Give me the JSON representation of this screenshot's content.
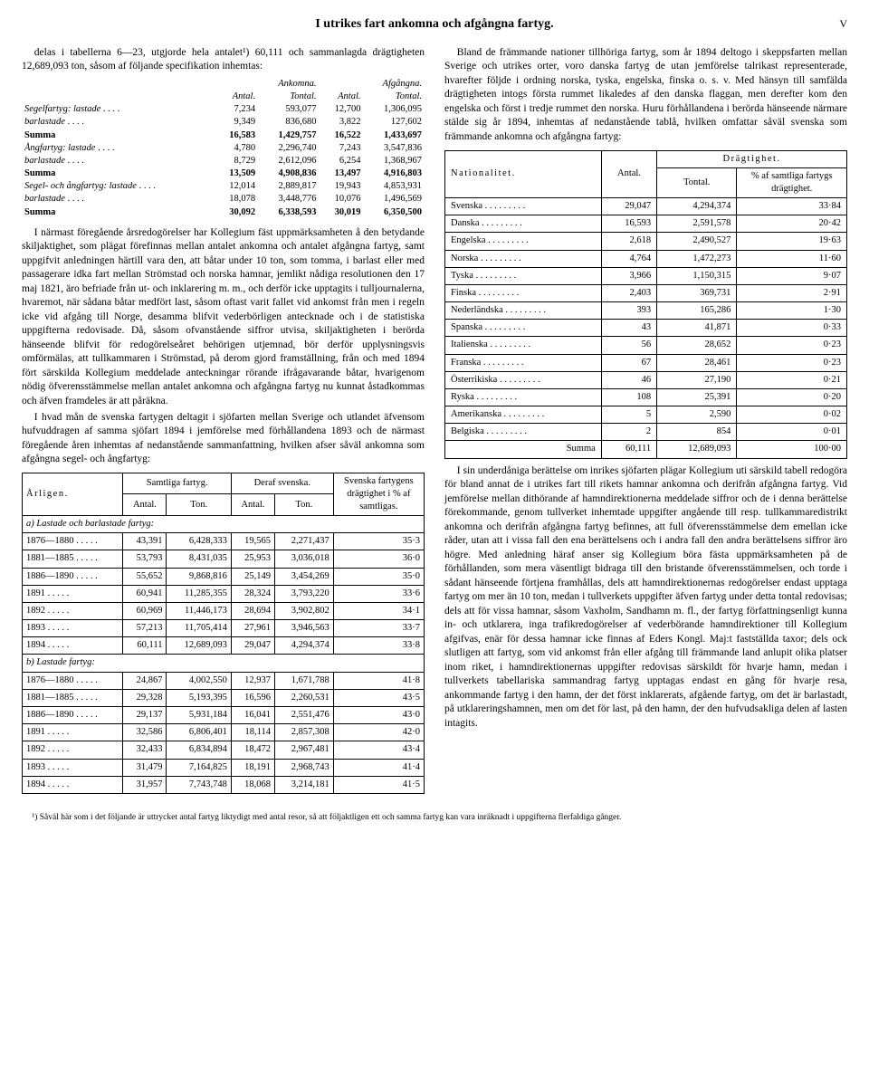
{
  "title": "I utrikes fart ankomna och afgångna fartyg.",
  "page_roman": "V",
  "left_intro": "delas i tabellerna 6—23, utgjorde hela antalet¹) 60,111 och sammanlagda drägtigheten 12,689,093 ton, såsom af följande specifikation inhemtas:",
  "freight": {
    "col_headers": [
      "",
      "Ankomna.",
      "",
      "Afgångna.",
      ""
    ],
    "sub_headers": [
      "",
      "Antal.",
      "Tontal.",
      "Antal.",
      "Tontal."
    ],
    "rows": [
      {
        "lbl": "Segelfartyg: lastade",
        "a": "7,234",
        "b": "593,077",
        "c": "12,700",
        "d": "1,306,095"
      },
      {
        "lbl": "barlastade",
        "a": "9,349",
        "b": "836,680",
        "c": "3,822",
        "d": "127,602"
      },
      {
        "lbl": "Summa",
        "a": "16,583",
        "b": "1,429,757",
        "c": "16,522",
        "d": "1,433,697",
        "sum": true
      },
      {
        "lbl": "Ångfartyg: lastade",
        "a": "4,780",
        "b": "2,296,740",
        "c": "7,243",
        "d": "3,547,836"
      },
      {
        "lbl": "barlastade",
        "a": "8,729",
        "b": "2,612,096",
        "c": "6,254",
        "d": "1,368,967"
      },
      {
        "lbl": "Summa",
        "a": "13,509",
        "b": "4,908,836",
        "c": "13,497",
        "d": "4,916,803",
        "sum": true
      },
      {
        "lbl": "Segel- och ångfartyg: lastade",
        "a": "12,014",
        "b": "2,889,817",
        "c": "19,943",
        "d": "4,853,931"
      },
      {
        "lbl": "barlastade",
        "a": "18,078",
        "b": "3,448,776",
        "c": "10,076",
        "d": "1,496,569"
      },
      {
        "lbl": "Summa",
        "a": "30,092",
        "b": "6,338,593",
        "c": "30,019",
        "d": "6,350,500",
        "sum": true
      }
    ]
  },
  "left_body_1": "I närmast föregående årsredogörelser har Kollegium fäst uppmärksamheten å den betydande skiljaktighet, som plägat förefinnas mellan antalet ankomna och antalet afgångna fartyg, samt uppgifvit anledningen härtill vara den, att båtar under 10 ton, som tomma, i barlast eller med passagerare idka fart mellan Strömstad och norska hamnar, jemlikt nådiga resolutionen den 17 maj 1821, äro befriade från ut- och inklarering m. m., och derför icke upptagits i tulljournalerna, hvaremot, när sådana båtar medfört last, såsom oftast varit fallet vid ankomst från men i regeln icke vid afgång till Norge, desamma blifvit vederbörligen antecknade och i de statistiska uppgifterna redovisade. Då, såsom ofvanstående siffror utvisa, skiljaktigheten i berörda hänseende blifvit för redogörelseåret behörigen utjemnad, bör derför upplysningsvis omförmälas, att tullkammaren i Strömstad, på derom gjord framställning, från och med 1894 fört särskilda Kollegium meddelade anteckningar rörande ifrågavarande båtar, hvarigenom nödig öfverensstämmelse mellan antalet ankomna och afgångna fartyg nu kunnat åstadkommas och äfven framdeles är att påräkna.",
  "left_body_2": "I hvad mån de svenska fartygen deltagit i sjöfarten mellan Sverige och utlandet äfvensom hufvuddragen af samma sjöfart 1894 i jemförelse med förhållandena 1893 och de närmast föregående åren inhemtas af nedanstående sammanfattning, hvilken afser såväl ankomna som afgångna segel- och ångfartyg:",
  "year_table": {
    "head_l1": [
      "Årligen.",
      "Samtliga fartyg.",
      "Deraf svenska.",
      "Svenska fartygens drägtighet i % af samtligas."
    ],
    "head_l2": [
      "Antal.",
      "Ton.",
      "Antal.",
      "Ton."
    ],
    "section_a": "a) Lastade och barlastade fartyg:",
    "rows_a": [
      {
        "y": "1876—1880",
        "a": "43,391",
        "b": "6,428,333",
        "c": "19,565",
        "d": "2,271,437",
        "p": "35·3"
      },
      {
        "y": "1881—1885",
        "a": "53,793",
        "b": "8,431,035",
        "c": "25,953",
        "d": "3,036,018",
        "p": "36·0"
      },
      {
        "y": "1886—1890",
        "a": "55,652",
        "b": "9,868,816",
        "c": "25,149",
        "d": "3,454,269",
        "p": "35·0"
      },
      {
        "y": "1891",
        "a": "60,941",
        "b": "11,285,355",
        "c": "28,324",
        "d": "3,793,220",
        "p": "33·6"
      },
      {
        "y": "1892",
        "a": "60,969",
        "b": "11,446,173",
        "c": "28,694",
        "d": "3,902,802",
        "p": "34·1"
      },
      {
        "y": "1893",
        "a": "57,213",
        "b": "11,705,414",
        "c": "27,961",
        "d": "3,946,563",
        "p": "33·7"
      },
      {
        "y": "1894",
        "a": "60,111",
        "b": "12,689,093",
        "c": "29,047",
        "d": "4,294,374",
        "p": "33·8"
      }
    ],
    "section_b": "b) Lastade fartyg:",
    "rows_b": [
      {
        "y": "1876—1880",
        "a": "24,867",
        "b": "4,002,550",
        "c": "12,937",
        "d": "1,671,788",
        "p": "41·8"
      },
      {
        "y": "1881—1885",
        "a": "29,328",
        "b": "5,193,395",
        "c": "16,596",
        "d": "2,260,531",
        "p": "43·5"
      },
      {
        "y": "1886—1890",
        "a": "29,137",
        "b": "5,931,184",
        "c": "16,041",
        "d": "2,551,476",
        "p": "43·0"
      },
      {
        "y": "1891",
        "a": "32,586",
        "b": "6,806,401",
        "c": "18,114",
        "d": "2,857,308",
        "p": "42·0"
      },
      {
        "y": "1892",
        "a": "32,433",
        "b": "6,834,894",
        "c": "18,472",
        "d": "2,967,481",
        "p": "43·4"
      },
      {
        "y": "1893",
        "a": "31,479",
        "b": "7,164,825",
        "c": "18,191",
        "d": "2,968,743",
        "p": "41·4"
      },
      {
        "y": "1894",
        "a": "31,957",
        "b": "7,743,748",
        "c": "18,068",
        "d": "3,214,181",
        "p": "41·5"
      }
    ]
  },
  "right_body_1": "Bland de främmande nationer tillhöriga fartyg, som år 1894 deltogo i skeppsfarten mellan Sverige och utrikes orter, voro danska fartyg de utan jemförelse talrikast representerade, hvarefter följde i ordning norska, tyska, engelska, finska o. s. v. Med hänsyn till samfälda drägtigheten intogs första rummet likaledes af den danska flaggan, men derefter kom den engelska och först i tredje rummet den norska. Huru förhållandena i berörda hänseende närmare stälde sig år 1894, inhemtas af nedanstående tablå, hvilken omfattar såväl svenska som främmande ankomna och afgångna fartyg:",
  "nat_table": {
    "head_top": [
      "Nationalitet.",
      "Antal.",
      "Drägtighet."
    ],
    "head_sub": [
      "Tontal.",
      "% af samtliga fartygs drägtighet."
    ],
    "rows": [
      {
        "n": "Svenska",
        "a": "29,047",
        "t": "4,294,374",
        "p": "33·84"
      },
      {
        "n": "Danska",
        "a": "16,593",
        "t": "2,591,578",
        "p": "20·42"
      },
      {
        "n": "Engelska",
        "a": "2,618",
        "t": "2,490,527",
        "p": "19·63"
      },
      {
        "n": "Norska",
        "a": "4,764",
        "t": "1,472,273",
        "p": "11·60"
      },
      {
        "n": "Tyska",
        "a": "3,966",
        "t": "1,150,315",
        "p": "9·07"
      },
      {
        "n": "Finska",
        "a": "2,403",
        "t": "369,731",
        "p": "2·91"
      },
      {
        "n": "Nederländska",
        "a": "393",
        "t": "165,286",
        "p": "1·30"
      },
      {
        "n": "Spanska",
        "a": "43",
        "t": "41,871",
        "p": "0·33"
      },
      {
        "n": "Italienska",
        "a": "56",
        "t": "28,652",
        "p": "0·23"
      },
      {
        "n": "Franska",
        "a": "67",
        "t": "28,461",
        "p": "0·23"
      },
      {
        "n": "Österrikiska",
        "a": "46",
        "t": "27,190",
        "p": "0·21"
      },
      {
        "n": "Ryska",
        "a": "108",
        "t": "25,391",
        "p": "0·20"
      },
      {
        "n": "Amerikanska",
        "a": "5",
        "t": "2,590",
        "p": "0·02"
      },
      {
        "n": "Belgiska",
        "a": "2",
        "t": "854",
        "p": "0·01"
      }
    ],
    "sum": {
      "n": "Summa",
      "a": "60,111",
      "t": "12,689,093",
      "p": "100·00"
    }
  },
  "right_body_2": "I sin underdåniga berättelse om inrikes sjöfarten plägar Kollegium uti särskild tabell redogöra för bland annat de i utrikes fart till rikets hamnar ankomna och derifrån afgångna fartyg. Vid jemförelse mellan dithörande af hamndirektionerna meddelade siffror och de i denna berättelse förekommande, genom tullverket inhemtade uppgifter angående till resp. tullkammaredistrikt ankomna och derifrån afgångna fartyg befinnes, att full öfverensstämmelse dem emellan icke råder, utan att i vissa fall den ena berättelsens och i andra fall den andra berättelsens siffror äro högre. Med anledning häraf anser sig Kollegium böra fästa uppmärksamheten på de förhållanden, som mera väsentligt bidraga till den bristande öfverensstämmelsen, och torde i sådant hänseende förtjena framhållas, dels att hamndirektionernas redogörelser endast upptaga fartyg om mer än 10 ton, medan i tullverkets uppgifter äfven fartyg under detta tontal redovisas; dels att för vissa hamnar, såsom Vaxholm, Sandhamn m. fl., der fartyg författningsenligt kunna in- och utklarera, inga trafikredogörelser af vederbörande hamndirektioner till Kollegium afgifvas, enär för dessa hamnar icke finnas af Eders Kongl. Maj:t fastställda taxor; dels ock slutligen att fartyg, som vid ankomst från eller afgång till främmande land anlupit olika platser inom riket, i hamndirektionernas uppgifter redovisas särskildt för hvarje hamn, medan i tullverkets tabellariska sammandrag fartyg upptagas endast en gång för hvarje resa, ankommande fartyg i den hamn, der det först inklarerats, afgående fartyg, om det är barlastadt, på utklareringshamnen, men om det för last, på den hamn, der den hufvudsakliga delen af lasten intagits.",
  "footnote": "¹) Såväl här som i det följande är uttrycket antal fartyg liktydigt med antal resor, så att följaktligen ett och samma fartyg kan vara inräknadt i uppgifterna flerfaldiga gånger."
}
